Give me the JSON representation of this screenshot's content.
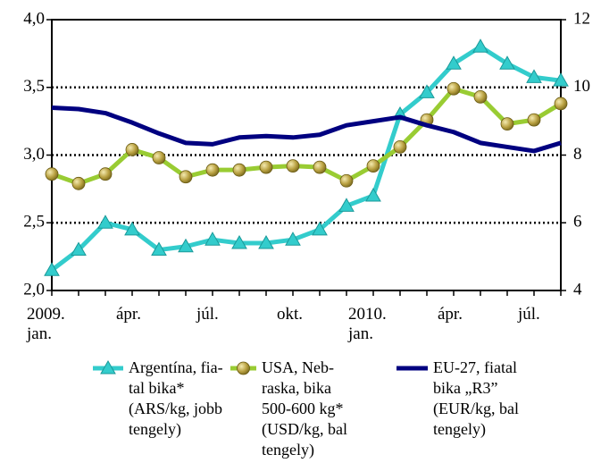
{
  "chart_data": {
    "type": "line",
    "categories": [
      "2009.\njan.",
      null,
      null,
      "ápr.",
      null,
      null,
      "júl.",
      null,
      null,
      "okt.",
      null,
      null,
      "2010.\njan.",
      null,
      null,
      "ápr.",
      null,
      null,
      "júl.",
      null
    ],
    "series": [
      {
        "name": "Argentína, fia-\ntal bika*\n(ARS/kg, jobb\ntengely)",
        "color": "#33CCCC",
        "marker": "triangle",
        "axis": "y2",
        "values": [
          4.6,
          5.2,
          6.0,
          5.8,
          5.2,
          5.3,
          5.5,
          5.4,
          5.4,
          5.5,
          5.8,
          6.5,
          6.8,
          9.2,
          9.85,
          10.7,
          11.2,
          10.7,
          10.3,
          10.2
        ]
      },
      {
        "name": "USA, Neb-\nraska, bika\n500-600 kg*\n(USD/kg, bal\ntengely)",
        "color": "#99CC33",
        "marker": "circle",
        "values": [
          2.86,
          2.79,
          2.86,
          3.04,
          2.98,
          2.84,
          2.89,
          2.89,
          2.91,
          2.92,
          2.91,
          2.81,
          2.92,
          3.06,
          3.26,
          3.49,
          3.43,
          3.23,
          3.26,
          3.38
        ]
      },
      {
        "name": "EU-27, fiatal\nbika „R3”\n(EUR/kg, bal\ntengely)",
        "color": "#000080",
        "values": [
          3.35,
          3.34,
          3.31,
          3.24,
          3.16,
          3.09,
          3.08,
          3.13,
          3.14,
          3.13,
          3.15,
          3.22,
          3.25,
          3.28,
          3.22,
          3.17,
          3.09,
          3.06,
          3.03,
          3.09
        ]
      }
    ],
    "ylim": [
      2,
      4
    ],
    "yticks": [
      {
        "value": 2,
        "label": "2,0"
      },
      {
        "value": 2.5,
        "label": "2,5"
      },
      {
        "value": 3,
        "label": "3,0"
      },
      {
        "value": 3.5,
        "label": "3,5"
      },
      {
        "value": 4,
        "label": "4,0"
      }
    ],
    "y2lim": [
      4,
      12
    ],
    "y2ticks": [
      4,
      6,
      8,
      10,
      12
    ],
    "grid": true
  }
}
